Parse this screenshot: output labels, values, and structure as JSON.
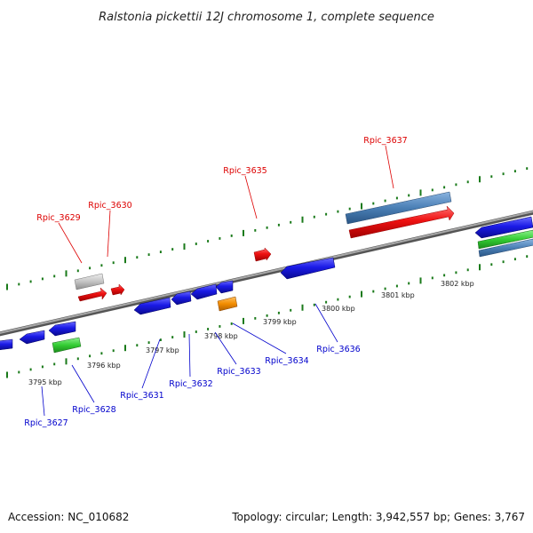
{
  "title": "Ralstonia pickettii 12J chromosome 1, complete sequence",
  "footer": {
    "accession": "Accession: NC_010682",
    "summary": "Topology: circular; Length: 3,942,557 bp; Genes: 3,767"
  },
  "colors": {
    "forward_label": "#dd0000",
    "reverse_label": "#0000cc",
    "tick": "#1a7a1a",
    "backbone": "#808080",
    "gene_red": "#ee1111",
    "gene_blue": "#1a1ae6",
    "gene_grey": "#bdbdbd",
    "gene_steel": "#4a7fb5",
    "gene_green": "#33cc33",
    "gene_orange": "#f28c00"
  },
  "ticks": {
    "top_labels": [],
    "bottom_labels": [
      "3795 kbp",
      "3796 kbp",
      "3797 kbp",
      "3798 kbp",
      "3799 kbp",
      "3800 kbp",
      "3801 kbp",
      "3802 kbp"
    ]
  },
  "genes_forward": [
    "Rpic_3629",
    "Rpic_3630",
    "Rpic_3635",
    "Rpic_3637"
  ],
  "genes_reverse": [
    "Rpic_3627",
    "Rpic_3628",
    "Rpic_3631",
    "Rpic_3632",
    "Rpic_3633",
    "Rpic_3634",
    "Rpic_3636"
  ]
}
